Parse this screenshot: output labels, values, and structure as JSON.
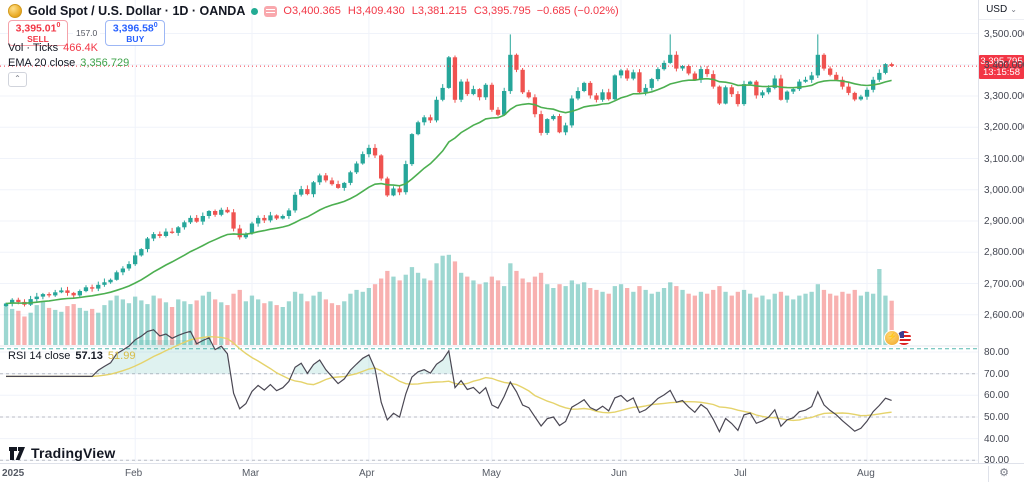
{
  "header": {
    "symbol_title": "Gold Spot / U.S. Dollar · 1D · OANDA",
    "ohlc_items": [
      {
        "k": "O",
        "v": "3,400.365"
      },
      {
        "k": "H",
        "v": "3,409.430"
      },
      {
        "k": "L",
        "v": "3,381.215"
      },
      {
        "k": "C",
        "v": "3,395.795"
      }
    ],
    "change": "−0.685 (−0.02%)"
  },
  "trade_panel": {
    "sell_price": "3,395.01",
    "sell_sup": "0",
    "sell_label": "SELL",
    "spread": "157.0",
    "buy_price": "3,396.58",
    "buy_sup": "0",
    "buy_label": "BUY"
  },
  "indicators": {
    "vol_label": "Vol · Ticks",
    "vol_value": "466.4K",
    "ema_label": "EMA 20 close",
    "ema_value": "3,356.729",
    "rsi_label": "RSI 14 close",
    "rsi_value": "57.13",
    "rsi_ma_value": "51.99",
    "collapse_glyph": "⌃"
  },
  "price_axis": {
    "currency": "USD",
    "labels": [
      {
        "text": "3,500.000",
        "value": 3500
      },
      {
        "text": "3,400.000",
        "value": 3400
      },
      {
        "text": "3,300.000",
        "value": 3300
      },
      {
        "text": "3,200.000",
        "value": 3200
      },
      {
        "text": "3,100.000",
        "value": 3100
      },
      {
        "text": "3,000.000",
        "value": 3000
      },
      {
        "text": "2,900.000",
        "value": 2900
      },
      {
        "text": "2,800.000",
        "value": 2800
      },
      {
        "text": "2,700.000",
        "value": 2700
      },
      {
        "text": "2,600.000",
        "value": 2600
      }
    ],
    "badge": {
      "price_text": "3,395.795",
      "countdown": "13:15:58",
      "price_value": 3395.795
    }
  },
  "rsi_axis": {
    "labels": [
      {
        "text": "80.00",
        "value": 80
      },
      {
        "text": "70.00",
        "value": 70
      },
      {
        "text": "60.00",
        "value": 60
      },
      {
        "text": "50.00",
        "value": 50
      },
      {
        "text": "40.00",
        "value": 40
      },
      {
        "text": "30.00",
        "value": 30
      }
    ]
  },
  "time_axis": {
    "ticks": [
      {
        "label": "2025",
        "index": 0
      },
      {
        "label": "Feb",
        "index": 21
      },
      {
        "label": "Mar",
        "index": 40
      },
      {
        "label": "Apr",
        "index": 59
      },
      {
        "label": "May",
        "index": 79
      },
      {
        "label": "Jun",
        "index": 100
      },
      {
        "label": "Jul",
        "index": 120
      },
      {
        "label": "Aug",
        "index": 140
      }
    ]
  },
  "logo": {
    "text": "TradingView"
  },
  "colors": {
    "up": "#26a69a",
    "down": "#ef5350",
    "vol_up": "rgba(38,166,154,0.45)",
    "vol_down": "rgba(239,83,80,0.45)",
    "ema": "#4caf50",
    "rsi_line": "#4a4753",
    "rsi_ma": "#e5d36b",
    "price_line": "#f23645",
    "grid": "#f0f3fa",
    "band": "#a6a9b3",
    "upper_band": "#2aa79c",
    "accent_buy": "#2962ff",
    "accent_sell": "#f23645"
  },
  "chart_data": {
    "type": "candlestick",
    "title": "Gold Spot / U.S. Dollar",
    "interval": "1D",
    "exchange": "OANDA",
    "last_ohlc": {
      "open": 3400.365,
      "high": 3409.43,
      "low": 3381.215,
      "close": 3395.795
    },
    "price_line": 3395.795,
    "ema_period": 20,
    "rsi_period": 14,
    "rsi_bands": [
      70,
      50,
      30
    ],
    "rsi_upper_band": 81.5,
    "ylim_price": [
      2560,
      3560
    ],
    "ylim_rsi": [
      30,
      80
    ],
    "x_months": [
      "2025",
      "Feb",
      "Mar",
      "Apr",
      "May",
      "Jun",
      "Jul",
      "Aug"
    ],
    "candles": {
      "note": "estimated daily closes Jan–Aug 2025; open = previous close; wicks approximated",
      "peak_high": 3497,
      "closes": [
        2636,
        2648,
        2641,
        2632,
        2650,
        2658,
        2666,
        2662,
        2672,
        2678,
        2670,
        2662,
        2676,
        2688,
        2684,
        2696,
        2704,
        2712,
        2736,
        2748,
        2762,
        2790,
        2810,
        2844,
        2858,
        2852,
        2866,
        2862,
        2880,
        2896,
        2910,
        2898,
        2916,
        2932,
        2920,
        2936,
        2928,
        2876,
        2848,
        2860,
        2892,
        2910,
        2902,
        2918,
        2908,
        2916,
        2934,
        2984,
        3002,
        2986,
        3024,
        3046,
        3030,
        3018,
        3006,
        3022,
        3056,
        3084,
        3114,
        3134,
        3110,
        3036,
        2982,
        3004,
        2992,
        3082,
        3178,
        3216,
        3232,
        3222,
        3288,
        3326,
        3424,
        3288,
        3346,
        3306,
        3322,
        3296,
        3336,
        3256,
        3240,
        3316,
        3432,
        3384,
        3312,
        3296,
        3242,
        3182,
        3226,
        3236,
        3184,
        3206,
        3292,
        3316,
        3342,
        3302,
        3288,
        3312,
        3290,
        3366,
        3382,
        3356,
        3376,
        3312,
        3326,
        3354,
        3386,
        3406,
        3432,
        3388,
        3396,
        3372,
        3352,
        3386,
        3370,
        3330,
        3276,
        3328,
        3306,
        3274,
        3338,
        3346,
        3302,
        3312,
        3326,
        3356,
        3288,
        3314,
        3322,
        3346,
        3352,
        3366,
        3432,
        3388,
        3368,
        3352,
        3330,
        3310,
        3289,
        3298,
        3320,
        3352,
        3374,
        3402,
        3396
      ]
    },
    "volume": {
      "unit": "K ticks",
      "current": 466.4,
      "values": [
        420,
        380,
        360,
        300,
        340,
        420,
        460,
        390,
        370,
        350,
        410,
        430,
        390,
        360,
        380,
        340,
        420,
        470,
        520,
        480,
        440,
        510,
        470,
        430,
        520,
        490,
        450,
        400,
        480,
        460,
        430,
        470,
        520,
        560,
        480,
        450,
        420,
        540,
        580,
        460,
        520,
        480,
        440,
        460,
        420,
        400,
        460,
        560,
        540,
        460,
        520,
        560,
        480,
        440,
        420,
        460,
        540,
        580,
        560,
        600,
        640,
        700,
        780,
        720,
        680,
        740,
        820,
        760,
        700,
        680,
        860,
        940,
        950,
        880,
        760,
        720,
        680,
        640,
        660,
        720,
        680,
        620,
        860,
        780,
        700,
        660,
        720,
        760,
        640,
        600,
        640,
        620,
        680,
        640,
        660,
        600,
        580,
        560,
        540,
        620,
        640,
        600,
        560,
        620,
        580,
        540,
        560,
        600,
        660,
        620,
        580,
        540,
        520,
        560,
        540,
        580,
        620,
        560,
        520,
        560,
        580,
        540,
        500,
        520,
        480,
        540,
        560,
        520,
        480,
        520,
        540,
        560,
        640,
        580,
        540,
        520,
        560,
        540,
        580,
        520,
        560,
        540,
        800,
        520,
        466
      ]
    }
  }
}
